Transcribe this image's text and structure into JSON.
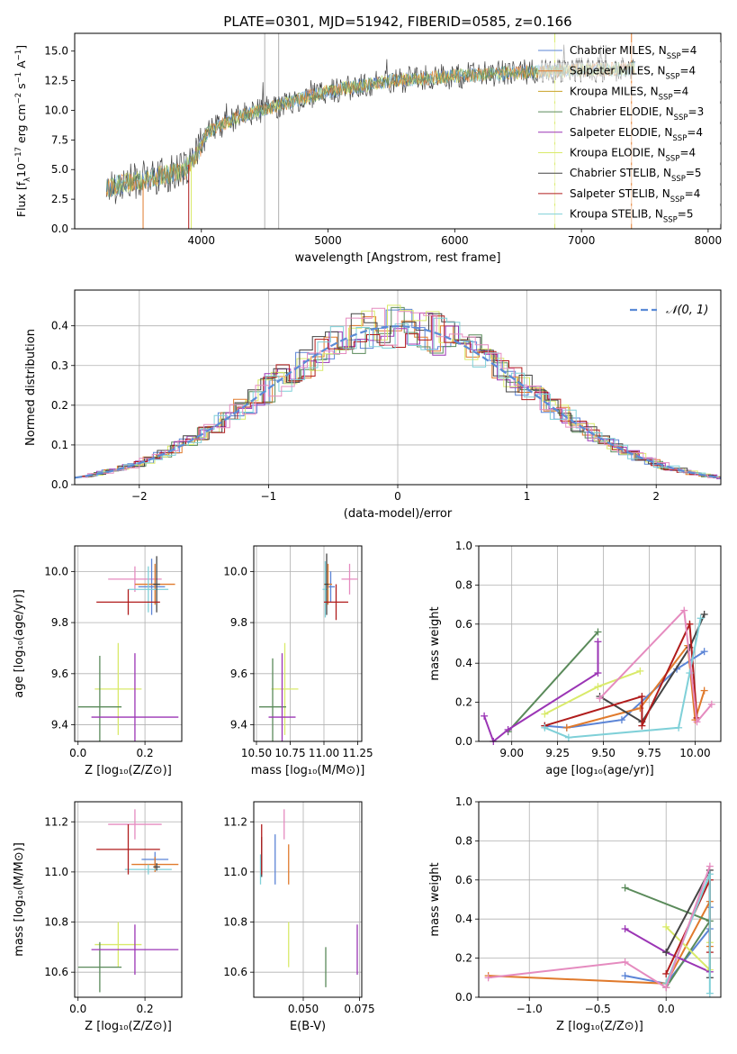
{
  "colors": {
    "chabrier_miles": "#5b84d6",
    "salpeter_miles": "#e07a2c",
    "kroupa_miles": "#c9a227",
    "chabrier_elodie": "#5a8a5a",
    "salpeter_elodie": "#9b35b5",
    "kroupa_elodie": "#d9ea6a",
    "chabrier_stelib": "#444444",
    "salpeter_stelib": "#b01c1c",
    "kroupa_stelib": "#7fd0d8",
    "pink": "#e58bbf",
    "grid": "#b0b0b0",
    "gauss": "#5b8bd6"
  },
  "chart_data": [
    {
      "id": "spectrum",
      "type": "line",
      "title": "PLATE=0301, MJD=51942, FIBERID=0585, z=0.166",
      "xlabel": "wavelength [Angstrom, rest frame]",
      "ylabel_parts": [
        "Flux [f",
        "λ",
        "10",
        "−17",
        " erg cm",
        "−2",
        " s",
        "−1",
        " A",
        "−1",
        "]"
      ],
      "xlim": [
        3000,
        8100
      ],
      "ylim": [
        0,
        16.5
      ],
      "xticks": [
        4000,
        5000,
        6000,
        7000,
        8000
      ],
      "yticks": [
        0.0,
        2.5,
        5.0,
        7.5,
        10.0,
        12.5,
        15.0
      ],
      "legend": {
        "position": "right",
        "entries": [
          {
            "name": "Chabrier MILES, N",
            "sub": "SSP",
            "tail": "=4",
            "color_key": "chabrier_miles"
          },
          {
            "name": "Salpeter MILES, N",
            "sub": "SSP",
            "tail": "=4",
            "color_key": "salpeter_miles"
          },
          {
            "name": "Kroupa MILES, N",
            "sub": "SSP",
            "tail": "=4",
            "color_key": "kroupa_miles"
          },
          {
            "name": "Chabrier ELODIE, N",
            "sub": "SSP",
            "tail": "=3",
            "color_key": "chabrier_elodie"
          },
          {
            "name": "Salpeter ELODIE, N",
            "sub": "SSP",
            "tail": "=4",
            "color_key": "salpeter_elodie"
          },
          {
            "name": "Kroupa ELODIE, N",
            "sub": "SSP",
            "tail": "=4",
            "color_key": "kroupa_elodie"
          },
          {
            "name": "Chabrier STELIB, N",
            "sub": "SSP",
            "tail": "=5",
            "color_key": "chabrier_stelib"
          },
          {
            "name": "Salpeter STELIB, N",
            "sub": "SSP",
            "tail": "=4",
            "color_key": "salpeter_stelib"
          },
          {
            "name": "Kroupa STELIB, N",
            "sub": "SSP",
            "tail": "=5",
            "color_key": "kroupa_stelib"
          }
        ]
      },
      "trend": [
        [
          3250,
          3.5
        ],
        [
          3600,
          4.3
        ],
        [
          3850,
          4.8
        ],
        [
          3950,
          6.0
        ],
        [
          4050,
          8.2
        ],
        [
          4300,
          9.5
        ],
        [
          4600,
          10.4
        ],
        [
          5000,
          11.6
        ],
        [
          5500,
          12.5
        ],
        [
          6000,
          12.9
        ],
        [
          6500,
          13.2
        ],
        [
          7000,
          13.4
        ],
        [
          7400,
          13.5
        ]
      ]
    },
    {
      "id": "residuals",
      "type": "histogram",
      "xlabel": "(data-model)/error",
      "ylabel": "Normed distribution",
      "xlim": [
        -2.5,
        2.5
      ],
      "ylim": [
        0,
        0.49
      ],
      "xticks": [
        -2,
        -1,
        0,
        1,
        2
      ],
      "yticks": [
        0.0,
        0.1,
        0.2,
        0.3,
        0.4
      ],
      "legend": {
        "position": "top-right",
        "label": "𝒩(0, 1)"
      },
      "series": [
        {
          "color_key": "chabrier_miles",
          "offset": 0.01
        },
        {
          "color_key": "salpeter_miles",
          "offset": 0.03
        },
        {
          "color_key": "chabrier_elodie",
          "offset": 0.05
        },
        {
          "color_key": "salpeter_elodie",
          "offset": 0.07
        },
        {
          "color_key": "kroupa_elodie",
          "offset": 0.02
        },
        {
          "color_key": "chabrier_stelib",
          "offset": 0.04
        },
        {
          "color_key": "salpeter_stelib",
          "offset": 0.06
        },
        {
          "color_key": "kroupa_stelib",
          "offset": 0.08
        },
        {
          "color_key": "pink",
          "offset": 0.0
        }
      ]
    },
    {
      "id": "age_vs_z",
      "type": "errorbar",
      "xlabel": "Z [log₁₀(Z/Z⊙)]",
      "ylabel": "age  [log₁₀(age/yr)]",
      "xlim": [
        -0.01,
        0.31
      ],
      "ylim": [
        9.335,
        10.1
      ],
      "xticks": [
        0.0,
        0.2
      ],
      "yticks": [
        9.4,
        9.6,
        9.8,
        10.0
      ],
      "points": [
        {
          "color_key": "pink",
          "x": 0.17,
          "xe": 0.08,
          "y": 9.97,
          "ye": 0.05
        },
        {
          "color_key": "chabrier_miles",
          "x": 0.22,
          "xe": 0.04,
          "y": 9.94,
          "ye": 0.11
        },
        {
          "color_key": "salpeter_miles",
          "x": 0.23,
          "xe": 0.06,
          "y": 9.95,
          "ye": 0.08
        },
        {
          "color_key": "kroupa_stelib",
          "x": 0.21,
          "xe": 0.06,
          "y": 9.93,
          "ye": 0.09
        },
        {
          "color_key": "chabrier_stelib",
          "x": 0.235,
          "xe": 0.01,
          "y": 9.95,
          "ye": 0.11
        },
        {
          "color_key": "salpeter_stelib",
          "x": 0.15,
          "xe": 0.095,
          "y": 9.88,
          "ye": 0.05
        },
        {
          "color_key": "kroupa_elodie",
          "x": 0.12,
          "xe": 0.07,
          "y": 9.54,
          "ye": 0.18
        },
        {
          "color_key": "chabrier_elodie",
          "x": 0.065,
          "xe": 0.065,
          "y": 9.47,
          "ye": 0.2
        },
        {
          "color_key": "salpeter_elodie",
          "x": 0.17,
          "xe": 0.13,
          "y": 9.43,
          "ye": 0.25
        }
      ]
    },
    {
      "id": "age_vs_mass",
      "type": "errorbar",
      "xlabel": "mass [log₁₀(M/M⊙)]",
      "ylabel": "",
      "xlim": [
        10.48,
        11.28
      ],
      "ylim": [
        9.335,
        10.1
      ],
      "xticks": [
        10.5,
        10.75,
        11.0,
        11.25
      ],
      "xticklabels": [
        "10.50",
        "10.75",
        "11.00",
        "11.25"
      ],
      "yticks": [
        9.4,
        9.6,
        9.8,
        10.0
      ],
      "points": [
        {
          "color_key": "pink",
          "x": 11.19,
          "xe": 0.06,
          "y": 9.97,
          "ye": 0.06
        },
        {
          "color_key": "chabrier_miles",
          "x": 11.05,
          "xe": 0.03,
          "y": 9.94,
          "ye": 0.06
        },
        {
          "color_key": "salpeter_miles",
          "x": 11.03,
          "xe": 0.03,
          "y": 9.95,
          "ye": 0.08
        },
        {
          "color_key": "kroupa_stelib",
          "x": 11.01,
          "xe": 0.02,
          "y": 9.93,
          "ye": 0.11
        },
        {
          "color_key": "chabrier_stelib",
          "x": 11.02,
          "xe": 0.015,
          "y": 9.95,
          "ye": 0.12
        },
        {
          "color_key": "salpeter_stelib",
          "x": 11.09,
          "xe": 0.09,
          "y": 9.88,
          "ye": 0.07
        },
        {
          "color_key": "kroupa_elodie",
          "x": 10.71,
          "xe": 0.1,
          "y": 9.54,
          "ye": 0.18
        },
        {
          "color_key": "chabrier_elodie",
          "x": 10.62,
          "xe": 0.1,
          "y": 9.47,
          "ye": 0.19
        },
        {
          "color_key": "salpeter_elodie",
          "x": 10.69,
          "xe": 0.1,
          "y": 9.43,
          "ye": 0.25
        }
      ]
    },
    {
      "id": "weight_vs_age",
      "type": "line",
      "xlabel": "age  [log₁₀(age/yr)]",
      "ylabel": "mass weight",
      "xlim": [
        8.82,
        10.14
      ],
      "ylim": [
        0,
        1.0
      ],
      "xticks": [
        9.0,
        9.25,
        9.5,
        9.75,
        10.0
      ],
      "xticklabels": [
        "9.00",
        "9.25",
        "9.50",
        "9.75",
        "10.00"
      ],
      "yticks": [
        0.0,
        0.2,
        0.4,
        0.6,
        0.8,
        1.0
      ],
      "series": [
        {
          "color_key": "chabrier_miles",
          "points": [
            [
              9.18,
              0.08
            ],
            [
              9.3,
              0.07
            ],
            [
              9.6,
              0.11
            ],
            [
              9.9,
              0.37
            ],
            [
              10.05,
              0.46
            ]
          ]
        },
        {
          "color_key": "salpeter_miles",
          "points": [
            [
              9.3,
              0.07
            ],
            [
              9.7,
              0.17
            ],
            [
              9.96,
              0.49
            ],
            [
              10.0,
              0.11
            ],
            [
              10.05,
              0.26
            ]
          ]
        },
        {
          "color_key": "chabrier_elodie",
          "points": [
            [
              8.98,
              0.05
            ],
            [
              9.47,
              0.56
            ]
          ]
        },
        {
          "color_key": "salpeter_elodie",
          "points": [
            [
              8.85,
              0.13
            ],
            [
              8.9,
              0.0
            ],
            [
              8.98,
              0.06
            ],
            [
              9.47,
              0.35
            ],
            [
              9.47,
              0.51
            ]
          ]
        },
        {
          "color_key": "kroupa_elodie",
          "points": [
            [
              9.18,
              0.14
            ],
            [
              9.47,
              0.28
            ],
            [
              9.7,
              0.36
            ]
          ]
        },
        {
          "color_key": "chabrier_stelib",
          "points": [
            [
              9.48,
              0.23
            ],
            [
              9.71,
              0.1
            ],
            [
              9.97,
              0.48
            ],
            [
              10.05,
              0.65
            ]
          ]
        },
        {
          "color_key": "salpeter_stelib",
          "points": [
            [
              9.18,
              0.08
            ],
            [
              9.71,
              0.23
            ],
            [
              9.71,
              0.08
            ],
            [
              9.97,
              0.6
            ],
            [
              10.01,
              0.12
            ]
          ]
        },
        {
          "color_key": "kroupa_stelib",
          "points": [
            [
              9.18,
              0.07
            ],
            [
              9.31,
              0.02
            ],
            [
              9.91,
              0.07
            ],
            [
              9.97,
              0.35
            ],
            [
              10.03,
              0.63
            ]
          ]
        },
        {
          "color_key": "pink",
          "points": [
            [
              9.48,
              0.22
            ],
            [
              9.94,
              0.67
            ],
            [
              10.01,
              0.1
            ],
            [
              10.09,
              0.19
            ]
          ]
        }
      ]
    },
    {
      "id": "mass_vs_z",
      "type": "errorbar",
      "xlabel": "Z [log₁₀(Z/Z⊙)]",
      "ylabel": "mass [log₁₀(M/M⊙)]",
      "xlim": [
        -0.01,
        0.31
      ],
      "ylim": [
        10.5,
        11.28
      ],
      "xticks": [
        0.0,
        0.2
      ],
      "yticks": [
        10.6,
        10.8,
        11.0,
        11.2
      ],
      "points": [
        {
          "color_key": "pink",
          "x": 0.17,
          "xe": 0.08,
          "y": 11.19,
          "ye": 0.06
        },
        {
          "color_key": "chabrier_miles",
          "x": 0.23,
          "xe": 0.04,
          "y": 11.05,
          "ye": 0.03
        },
        {
          "color_key": "salpeter_miles",
          "x": 0.23,
          "xe": 0.07,
          "y": 11.03,
          "ye": 0.03
        },
        {
          "color_key": "kroupa_stelib",
          "x": 0.21,
          "xe": 0.07,
          "y": 11.01,
          "ye": 0.02
        },
        {
          "color_key": "chabrier_stelib",
          "x": 0.235,
          "xe": 0.01,
          "y": 11.02,
          "ye": 0.015
        },
        {
          "color_key": "salpeter_stelib",
          "x": 0.15,
          "xe": 0.095,
          "y": 11.09,
          "ye": 0.1
        },
        {
          "color_key": "kroupa_elodie",
          "x": 0.12,
          "xe": 0.07,
          "y": 10.71,
          "ye": 0.09
        },
        {
          "color_key": "chabrier_elodie",
          "x": 0.065,
          "xe": 0.065,
          "y": 10.62,
          "ye": 0.1
        },
        {
          "color_key": "salpeter_elodie",
          "x": 0.17,
          "xe": 0.13,
          "y": 10.69,
          "ye": 0.1
        }
      ]
    },
    {
      "id": "mass_vs_ebv",
      "type": "errorbar",
      "xlabel": "E(B-V)",
      "ylabel": "",
      "xlim": [
        0.028,
        0.076
      ],
      "ylim": [
        10.5,
        11.28
      ],
      "xticks": [
        0.05,
        0.075
      ],
      "xticklabels": [
        "0.050",
        "0.075"
      ],
      "yticks": [
        10.6,
        10.8,
        11.0,
        11.2
      ],
      "points": [
        {
          "color_key": "pink",
          "x": 0.0415,
          "xe": 0,
          "y": 11.19,
          "ye": 0.06
        },
        {
          "color_key": "chabrier_miles",
          "x": 0.0375,
          "xe": 0,
          "y": 11.05,
          "ye": 0.1
        },
        {
          "color_key": "salpeter_miles",
          "x": 0.0435,
          "xe": 0,
          "y": 11.03,
          "ye": 0.08
        },
        {
          "color_key": "kroupa_stelib",
          "x": 0.031,
          "xe": 0,
          "y": 11.01,
          "ye": 0.06
        },
        {
          "color_key": "chabrier_stelib",
          "x": 0.0315,
          "xe": 0,
          "y": 11.06,
          "ye": 0.08
        },
        {
          "color_key": "salpeter_stelib",
          "x": 0.0315,
          "xe": 0,
          "y": 11.09,
          "ye": 0.1
        },
        {
          "color_key": "kroupa_elodie",
          "x": 0.0435,
          "xe": 0,
          "y": 10.71,
          "ye": 0.09
        },
        {
          "color_key": "chabrier_elodie",
          "x": 0.06,
          "xe": 0,
          "y": 10.62,
          "ye": 0.08
        },
        {
          "color_key": "salpeter_elodie",
          "x": 0.074,
          "xe": 0,
          "y": 10.69,
          "ye": 0.1
        }
      ]
    },
    {
      "id": "weight_vs_z",
      "type": "line",
      "xlabel": "Z [log₁₀(Z/Z⊙)]",
      "ylabel": "mass weight",
      "xlim": [
        -1.37,
        0.4
      ],
      "ylim": [
        0,
        1.0
      ],
      "xticks": [
        -1.0,
        -0.5,
        0.0
      ],
      "xticklabels": [
        "−1.0",
        "−0.5",
        "0.0"
      ],
      "yticks": [
        0.0,
        0.2,
        0.4,
        0.6,
        0.8,
        1.0
      ],
      "series": [
        {
          "color_key": "chabrier_miles",
          "points": [
            [
              -0.3,
              0.11
            ],
            [
              0.0,
              0.07
            ],
            [
              0.32,
              0.35
            ],
            [
              0.32,
              0.46
            ]
          ]
        },
        {
          "color_key": "salpeter_miles",
          "points": [
            [
              -1.3,
              0.11
            ],
            [
              0.0,
              0.07
            ],
            [
              0.32,
              0.49
            ],
            [
              0.32,
              0.26
            ]
          ]
        },
        {
          "color_key": "chabrier_elodie",
          "points": [
            [
              -0.3,
              0.56
            ],
            [
              0.32,
              0.39
            ],
            [
              0.0,
              0.05
            ]
          ]
        },
        {
          "color_key": "salpeter_elodie",
          "points": [
            [
              -0.3,
              0.35
            ],
            [
              0.0,
              0.23
            ],
            [
              0.32,
              0.13
            ]
          ]
        },
        {
          "color_key": "kroupa_elodie",
          "points": [
            [
              0.0,
              0.36
            ],
            [
              0.32,
              0.14
            ],
            [
              0.32,
              0.28
            ]
          ]
        },
        {
          "color_key": "chabrier_stelib",
          "points": [
            [
              0.0,
              0.23
            ],
            [
              0.32,
              0.65
            ],
            [
              0.32,
              0.1
            ]
          ]
        },
        {
          "color_key": "salpeter_stelib",
          "points": [
            [
              0.0,
              0.12
            ],
            [
              0.32,
              0.6
            ],
            [
              0.32,
              0.23
            ]
          ]
        },
        {
          "color_key": "kroupa_stelib",
          "points": [
            [
              0.0,
              0.07
            ],
            [
              0.32,
              0.63
            ],
            [
              0.32,
              0.02
            ]
          ]
        },
        {
          "color_key": "pink",
          "points": [
            [
              -1.3,
              0.1
            ],
            [
              -0.3,
              0.18
            ],
            [
              0.0,
              0.05
            ],
            [
              0.32,
              0.67
            ]
          ]
        }
      ]
    }
  ]
}
